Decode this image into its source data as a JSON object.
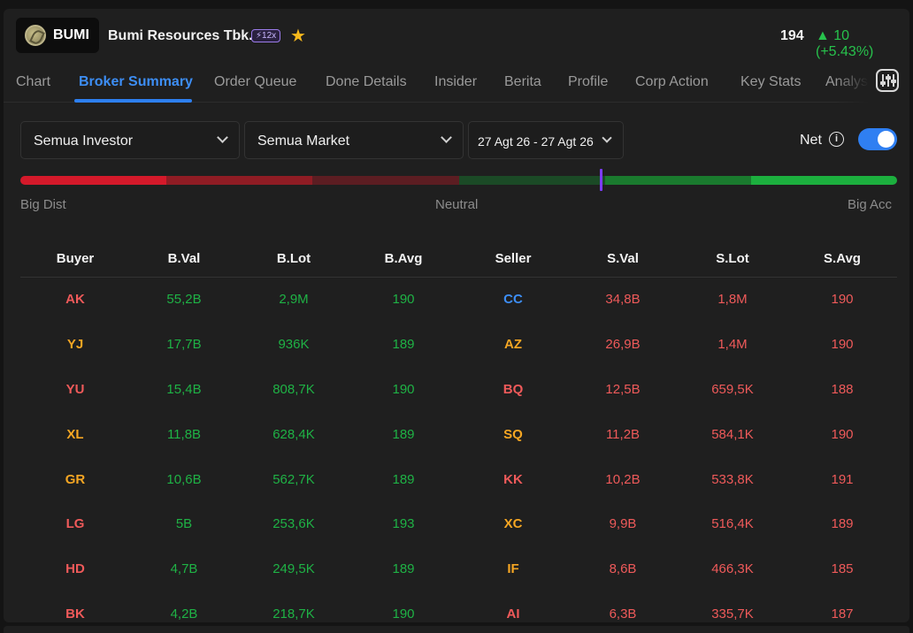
{
  "header": {
    "ticker": "BUMI",
    "company_name": "Bumi Resources Tbk.",
    "badge": "⚡12x",
    "price": "194",
    "change": "▲ 10 (+5.43%)"
  },
  "tabs": [
    {
      "label": "Chart"
    },
    {
      "label": "Broker Summary"
    },
    {
      "label": "Order Queue"
    },
    {
      "label": "Done Details"
    },
    {
      "label": "Insider"
    },
    {
      "label": "Berita"
    },
    {
      "label": "Profile"
    },
    {
      "label": "Corp Action"
    },
    {
      "label": "Key Stats"
    },
    {
      "label": "Analys"
    }
  ],
  "filters": {
    "investor": "Semua Investor",
    "market": "Semua Market",
    "date_range": "27 Agt 26 - 27 Agt 26",
    "net_label": "Net",
    "net_enabled": true
  },
  "scale": {
    "left_label": "Big Dist",
    "center_label": "Neutral",
    "right_label": "Big Acc",
    "segment_colors": [
      "#d4192a",
      "#8f1c24",
      "#5c1d22",
      "#1b4a26",
      "#1a7a2e",
      "#1caf3e"
    ]
  },
  "columns": [
    "Buyer",
    "B.Val",
    "B.Lot",
    "B.Avg",
    "Seller",
    "S.Val",
    "S.Lot",
    "S.Avg"
  ],
  "rows": [
    {
      "buyer": "AK",
      "bval": "55,2B",
      "blot": "2,9M",
      "bavg": "190",
      "seller": "CC",
      "sval": "34,8B",
      "slot": "1,8M",
      "savg": "190",
      "bcolor": "red",
      "scolor": "blue"
    },
    {
      "buyer": "YJ",
      "bval": "17,7B",
      "blot": "936K",
      "bavg": "189",
      "seller": "AZ",
      "sval": "26,9B",
      "slot": "1,4M",
      "savg": "190",
      "bcolor": "orange",
      "scolor": "orange"
    },
    {
      "buyer": "YU",
      "bval": "15,4B",
      "blot": "808,7K",
      "bavg": "190",
      "seller": "BQ",
      "sval": "12,5B",
      "slot": "659,5K",
      "savg": "188",
      "bcolor": "red",
      "scolor": "red"
    },
    {
      "buyer": "XL",
      "bval": "11,8B",
      "blot": "628,4K",
      "bavg": "189",
      "seller": "SQ",
      "sval": "11,2B",
      "slot": "584,1K",
      "savg": "190",
      "bcolor": "orange",
      "scolor": "orange"
    },
    {
      "buyer": "GR",
      "bval": "10,6B",
      "blot": "562,7K",
      "bavg": "189",
      "seller": "KK",
      "sval": "10,2B",
      "slot": "533,8K",
      "savg": "191",
      "bcolor": "orange",
      "scolor": "red"
    },
    {
      "buyer": "LG",
      "bval": "5B",
      "blot": "253,6K",
      "bavg": "193",
      "seller": "XC",
      "sval": "9,9B",
      "slot": "516,4K",
      "savg": "189",
      "bcolor": "red",
      "scolor": "orange"
    },
    {
      "buyer": "HD",
      "bval": "4,7B",
      "blot": "249,5K",
      "bavg": "189",
      "seller": "IF",
      "sval": "8,6B",
      "slot": "466,3K",
      "savg": "185",
      "bcolor": "red",
      "scolor": "orange"
    },
    {
      "buyer": "BK",
      "bval": "4,2B",
      "blot": "218,7K",
      "bavg": "190",
      "seller": "AI",
      "sval": "6,3B",
      "slot": "335,7K",
      "savg": "187",
      "bcolor": "red",
      "scolor": "red"
    }
  ],
  "colors": {
    "accent": "#2f7ff2",
    "buy_value": "#1fb245",
    "sell_value": "#ef5a5a",
    "foreign_broker": "#ef5a5a",
    "domestic_broker": "#f5a623",
    "gov_broker": "#3d8ef5",
    "marker": "#7d3cff"
  },
  "icons": {
    "star": "star-icon",
    "info": "info-icon",
    "settings": "sliders-icon",
    "chevron": "chevron-down-icon"
  }
}
